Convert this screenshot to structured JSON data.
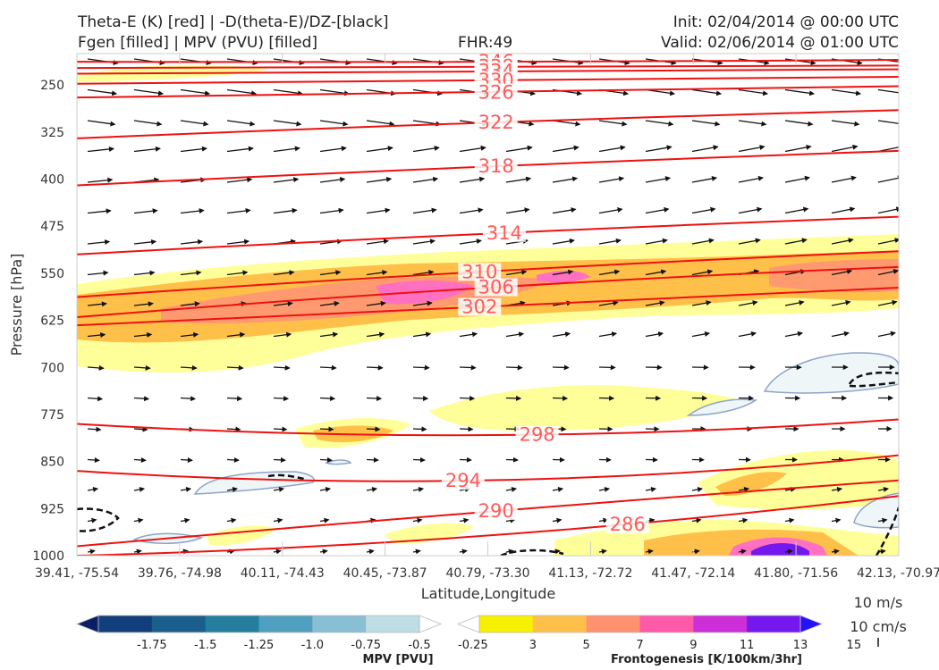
{
  "header": {
    "title_line1": "Theta-E (K) [red] | -D(theta-E)/DZ-[black]",
    "title_line2": "Fgen [filled] | MPV (PVU) [filled]",
    "fhr": "FHR:49",
    "init": "Init: 02/04/2014 @ 00:00 UTC",
    "valid": "Valid: 02/06/2014 @ 01:00 UTC"
  },
  "wind_key": {
    "line1": "10 m/s",
    "line2": "10 cm/s"
  },
  "colors": {
    "theta_e": "#ee1111",
    "fgen_light": "#ffff99",
    "fgen_orange": "#ffc04a",
    "fgen_salmon": "#ff9a70",
    "fgen_pink": "#ff70c0",
    "mpv_fill": "#eef6f8",
    "mpv_line": "#8fa4c8"
  },
  "chart_data": {
    "type": "cross-section",
    "xlabel": "Latitude,Longitude",
    "ylabel": "Pressure [hPa]",
    "yrange": [
      1000,
      200
    ],
    "yticks": [
      250,
      325,
      400,
      475,
      550,
      625,
      700,
      775,
      850,
      925,
      1000
    ],
    "xticks": [
      "39.41, -75.54",
      "39.76, -74.98",
      "40.11, -74.43",
      "40.45, -73.87",
      "40.79, -73.30",
      "41.13, -72.72",
      "41.47, -72.14",
      "41.80, -71.56",
      "42.13, -70.97"
    ],
    "theta_e_contours": [
      {
        "value": 346,
        "label": "346",
        "label_x": 0.51,
        "p": [
          213,
          213,
          210
        ]
      },
      {
        "value": 338,
        "label": "338",
        "label_x": 0.51,
        "p": [
          223,
          221,
          219
        ]
      },
      {
        "value": 334,
        "label": "334",
        "label_x": 0.51,
        "p": [
          232,
          228,
          225
        ]
      },
      {
        "value": 330,
        "label": "330",
        "label_x": 0.51,
        "p": [
          248,
          243,
          237
        ]
      },
      {
        "value": 326,
        "label": "326",
        "label_x": 0.51,
        "p": [
          270,
          262,
          252
        ]
      },
      {
        "value": 322,
        "label": "322",
        "label_x": 0.51,
        "p": [
          335,
          310,
          290
        ]
      },
      {
        "value": 318,
        "label": "318",
        "label_x": 0.51,
        "p": [
          410,
          380,
          355
        ]
      },
      {
        "value": 314,
        "label": "314",
        "label_x": 0.52,
        "p": [
          520,
          487,
          460
        ]
      },
      {
        "value": 310,
        "label": "310",
        "label_x": 0.49,
        "p": [
          588,
          547,
          515
        ]
      },
      {
        "value": 306,
        "label": "306",
        "label_x": 0.51,
        "p": [
          620,
          573,
          540
        ]
      },
      {
        "value": 302,
        "label": "302",
        "label_x": 0.49,
        "p": [
          633,
          603,
          573
        ]
      },
      {
        "value": 298,
        "label": "298",
        "label_x": 0.56,
        "p": [
          790,
          808,
          783
        ]
      },
      {
        "value": 294,
        "label": "294",
        "label_x": 0.47,
        "p": [
          865,
          880,
          840
        ]
      },
      {
        "value": 290,
        "label": "290",
        "label_x": 0.51,
        "p": [
          985,
          930,
          880
        ]
      },
      {
        "value": 286,
        "label": "286",
        "label_x": 0.67,
        "p": [
          1000,
          968,
          905
        ]
      }
    ],
    "mpv_colorbar": {
      "title": "MPV [PVU]",
      "ticks": [
        "-1.75",
        "-1.5",
        "-1.25",
        "-1.0",
        "-0.75",
        "-0.5",
        "-0.25"
      ],
      "colors": [
        "#0a1f66",
        "#123f7c",
        "#1a5e8e",
        "#247e9e",
        "#4fa0c0",
        "#88bfd4",
        "#bfdde6",
        "#ffffff"
      ]
    },
    "fgen_colorbar": {
      "title": "Frontogenesis [K/100km/3hr]",
      "ticks": [
        "3",
        "5",
        "7",
        "9",
        "11",
        "13",
        "15"
      ],
      "colors": [
        "#ffffff",
        "#f7f000",
        "#ffc04a",
        "#ff9070",
        "#ff5aa8",
        "#cc2ed8",
        "#7418ee",
        "#2412f6"
      ]
    }
  }
}
